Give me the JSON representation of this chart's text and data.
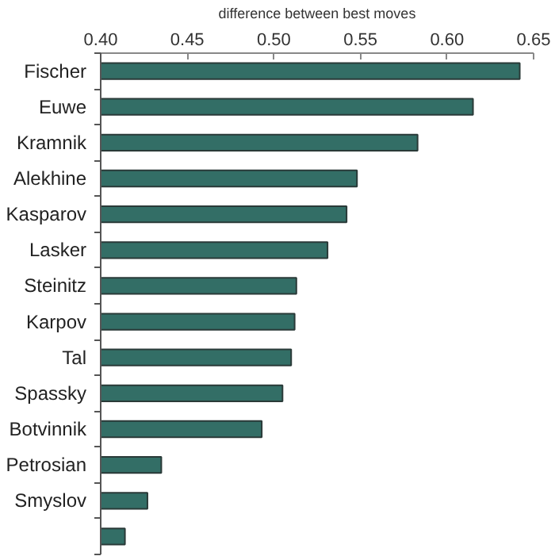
{
  "chart_data": {
    "type": "bar",
    "orientation": "horizontal",
    "xlabel": "difference between best moves",
    "categories": [
      "Fischer",
      "Euwe",
      "Kramnik",
      "Alekhine",
      "Kasparov",
      "Lasker",
      "Steinitz",
      "Karpov",
      "Tal",
      "Spassky",
      "Botvinnik",
      "Petrosian",
      "Smyslov",
      null
    ],
    "values": [
      0.642,
      0.615,
      0.583,
      0.548,
      0.542,
      0.531,
      0.513,
      0.512,
      0.51,
      0.505,
      0.493,
      0.435,
      0.427,
      0.414
    ],
    "color": "#336e66",
    "xlim": [
      0.4,
      0.65
    ],
    "xticks": [
      {
        "value": 0.4,
        "label": "0.40"
      },
      {
        "value": 0.45,
        "label": "0.45"
      },
      {
        "value": 0.5,
        "label": "0.50"
      },
      {
        "value": 0.55,
        "label": "0.55"
      },
      {
        "value": 0.6,
        "label": "0.60"
      },
      {
        "value": 0.65,
        "label": "0.65"
      }
    ],
    "grid": false
  }
}
